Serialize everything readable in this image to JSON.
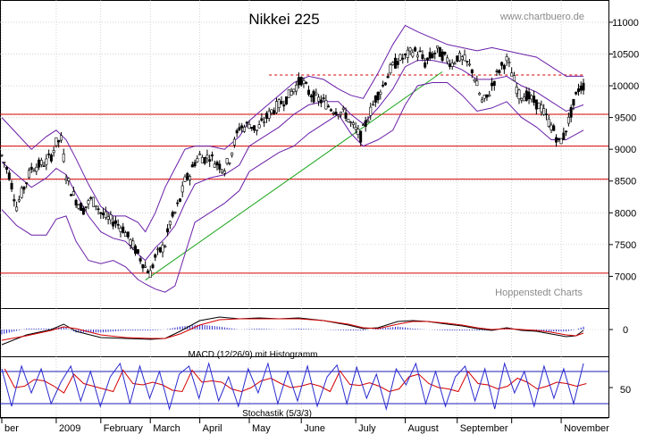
{
  "chart_data": [
    {
      "type": "line",
      "title": "Nikkei 225",
      "watermark_top": "www.chartbuero.de",
      "watermark_bottom": "Hoppenstedt Charts",
      "ylim": [
        6500,
        11350
      ],
      "yticks": [
        7000,
        7500,
        8000,
        8500,
        9000,
        9500,
        10000,
        10500,
        11000
      ],
      "months": [
        "ber",
        "2009",
        "February",
        "March",
        "April",
        "May",
        "June",
        "July",
        "August",
        "September",
        "",
        "November"
      ],
      "x_range": [
        0,
        235
      ],
      "month_starts": [
        0,
        22,
        40,
        60,
        80,
        100,
        121,
        143,
        163,
        184,
        206,
        226
      ],
      "horizontal_lines": [
        7050,
        8530,
        9050,
        9550
      ],
      "dashed_resistance": {
        "value": 10170,
        "from": 108,
        "to": 235
      },
      "trendline": {
        "from": [
          58,
          6940
        ],
        "to": [
          178,
          10220
        ]
      },
      "close": [
        [
          0,
          8900
        ],
        [
          3,
          8600
        ],
        [
          6,
          8100
        ],
        [
          9,
          8400
        ],
        [
          12,
          8700
        ],
        [
          15,
          8750
        ],
        [
          18,
          8800
        ],
        [
          20,
          8900
        ],
        [
          22,
          9100
        ],
        [
          24,
          9150
        ],
        [
          26,
          8600
        ],
        [
          28,
          8350
        ],
        [
          30,
          8200
        ],
        [
          33,
          8050
        ],
        [
          36,
          8200
        ],
        [
          38,
          8150
        ],
        [
          40,
          8000
        ],
        [
          43,
          7900
        ],
        [
          46,
          7850
        ],
        [
          49,
          7750
        ],
        [
          52,
          7550
        ],
        [
          55,
          7350
        ],
        [
          58,
          7150
        ],
        [
          60,
          7050
        ],
        [
          62,
          7300
        ],
        [
          64,
          7400
        ],
        [
          66,
          7500
        ],
        [
          68,
          7850
        ],
        [
          70,
          8000
        ],
        [
          72,
          8200
        ],
        [
          74,
          8500
        ],
        [
          76,
          8600
        ],
        [
          78,
          8800
        ],
        [
          80,
          8900
        ],
        [
          82,
          8850
        ],
        [
          84,
          8900
        ],
        [
          86,
          8800
        ],
        [
          88,
          8750
        ],
        [
          90,
          8700
        ],
        [
          92,
          8850
        ],
        [
          94,
          9100
        ],
        [
          96,
          9350
        ],
        [
          98,
          9350
        ],
        [
          100,
          9400
        ],
        [
          103,
          9300
        ],
        [
          106,
          9450
        ],
        [
          109,
          9600
        ],
        [
          112,
          9700
        ],
        [
          115,
          9800
        ],
        [
          118,
          9950
        ],
        [
          121,
          10100
        ],
        [
          124,
          9900
        ],
        [
          127,
          9800
        ],
        [
          130,
          9750
        ],
        [
          133,
          9650
        ],
        [
          136,
          9600
        ],
        [
          139,
          9550
        ],
        [
          141,
          9400
        ],
        [
          143,
          9300
        ],
        [
          145,
          9200
        ],
        [
          147,
          9400
        ],
        [
          149,
          9600
        ],
        [
          151,
          9800
        ],
        [
          154,
          10000
        ],
        [
          157,
          10250
        ],
        [
          160,
          10400
        ],
        [
          163,
          10450
        ],
        [
          166,
          10550
        ],
        [
          169,
          10500
        ],
        [
          171,
          10350
        ],
        [
          173,
          10450
        ],
        [
          176,
          10550
        ],
        [
          179,
          10450
        ],
        [
          182,
          10350
        ],
        [
          184,
          10450
        ],
        [
          187,
          10400
        ],
        [
          190,
          10250
        ],
        [
          192,
          10000
        ],
        [
          194,
          9750
        ],
        [
          196,
          9800
        ],
        [
          198,
          10000
        ],
        [
          201,
          10250
        ],
        [
          204,
          10400
        ],
        [
          206,
          10200
        ],
        [
          209,
          9850
        ],
        [
          212,
          9850
        ],
        [
          215,
          9750
        ],
        [
          218,
          9650
        ],
        [
          220,
          9500
        ],
        [
          223,
          9300
        ],
        [
          225,
          9100
        ],
        [
          227,
          9200
        ],
        [
          229,
          9450
        ],
        [
          231,
          9700
        ],
        [
          233,
          9950
        ],
        [
          235,
          10000
        ]
      ],
      "bollinger_upper": [
        [
          0,
          9500
        ],
        [
          6,
          9250
        ],
        [
          12,
          9000
        ],
        [
          18,
          9200
        ],
        [
          22,
          9300
        ],
        [
          26,
          9150
        ],
        [
          30,
          8850
        ],
        [
          35,
          8450
        ],
        [
          40,
          8100
        ],
        [
          45,
          7950
        ],
        [
          50,
          7950
        ],
        [
          55,
          7850
        ],
        [
          58,
          7700
        ],
        [
          62,
          8000
        ],
        [
          66,
          8400
        ],
        [
          70,
          8700
        ],
        [
          74,
          9000
        ],
        [
          78,
          9050
        ],
        [
          84,
          9050
        ],
        [
          90,
          9000
        ],
        [
          96,
          9200
        ],
        [
          100,
          9450
        ],
        [
          106,
          9650
        ],
        [
          112,
          9850
        ],
        [
          118,
          10050
        ],
        [
          124,
          10150
        ],
        [
          130,
          10100
        ],
        [
          136,
          9950
        ],
        [
          141,
          9850
        ],
        [
          146,
          9800
        ],
        [
          152,
          10200
        ],
        [
          158,
          10650
        ],
        [
          163,
          10950
        ],
        [
          168,
          10850
        ],
        [
          174,
          10750
        ],
        [
          180,
          10650
        ],
        [
          186,
          10600
        ],
        [
          192,
          10550
        ],
        [
          198,
          10600
        ],
        [
          204,
          10550
        ],
        [
          210,
          10500
        ],
        [
          216,
          10450
        ],
        [
          222,
          10300
        ],
        [
          228,
          10150
        ],
        [
          235,
          10150
        ]
      ],
      "bollinger_lower": [
        [
          0,
          8050
        ],
        [
          6,
          7800
        ],
        [
          12,
          7650
        ],
        [
          18,
          7650
        ],
        [
          22,
          7900
        ],
        [
          26,
          7950
        ],
        [
          30,
          7550
        ],
        [
          35,
          7250
        ],
        [
          40,
          7200
        ],
        [
          45,
          7250
        ],
        [
          50,
          7150
        ],
        [
          55,
          6950
        ],
        [
          58,
          6880
        ],
        [
          62,
          6800
        ],
        [
          66,
          6750
        ],
        [
          70,
          6850
        ],
        [
          74,
          7350
        ],
        [
          78,
          7850
        ],
        [
          84,
          8000
        ],
        [
          90,
          8150
        ],
        [
          96,
          8350
        ],
        [
          100,
          8650
        ],
        [
          106,
          8800
        ],
        [
          112,
          8950
        ],
        [
          118,
          9050
        ],
        [
          124,
          9250
        ],
        [
          130,
          9400
        ],
        [
          136,
          9550
        ],
        [
          141,
          9250
        ],
        [
          146,
          9050
        ],
        [
          152,
          9150
        ],
        [
          158,
          9300
        ],
        [
          163,
          9700
        ],
        [
          168,
          10000
        ],
        [
          174,
          10050
        ],
        [
          180,
          10050
        ],
        [
          186,
          9850
        ],
        [
          192,
          9600
        ],
        [
          198,
          9650
        ],
        [
          204,
          9750
        ],
        [
          210,
          9500
        ],
        [
          216,
          9350
        ],
        [
          222,
          9150
        ],
        [
          228,
          9150
        ],
        [
          235,
          9300
        ]
      ],
      "bollinger_mid": [
        [
          0,
          8800
        ],
        [
          6,
          8600
        ],
        [
          12,
          8400
        ],
        [
          18,
          8550
        ],
        [
          22,
          8700
        ],
        [
          26,
          8600
        ],
        [
          30,
          8300
        ],
        [
          35,
          7950
        ],
        [
          40,
          7700
        ],
        [
          45,
          7600
        ],
        [
          50,
          7550
        ],
        [
          55,
          7350
        ],
        [
          58,
          7250
        ],
        [
          62,
          7450
        ],
        [
          66,
          7600
        ],
        [
          70,
          7800
        ],
        [
          74,
          8150
        ],
        [
          78,
          8450
        ],
        [
          84,
          8550
        ],
        [
          90,
          8600
        ],
        [
          96,
          8750
        ],
        [
          100,
          9050
        ],
        [
          106,
          9200
        ],
        [
          112,
          9350
        ],
        [
          118,
          9550
        ],
        [
          124,
          9700
        ],
        [
          130,
          9750
        ],
        [
          136,
          9750
        ],
        [
          141,
          9550
        ],
        [
          146,
          9400
        ],
        [
          152,
          9650
        ],
        [
          158,
          9950
        ],
        [
          163,
          10300
        ],
        [
          168,
          10400
        ],
        [
          174,
          10400
        ],
        [
          180,
          10350
        ],
        [
          186,
          10250
        ],
        [
          192,
          10100
        ],
        [
          198,
          10100
        ],
        [
          204,
          10150
        ],
        [
          210,
          10000
        ],
        [
          216,
          9900
        ],
        [
          222,
          9750
        ],
        [
          228,
          9600
        ],
        [
          235,
          9700
        ]
      ]
    },
    {
      "type": "line",
      "label": "MACD (12/26/9) mit Histogramm",
      "ytick": "0",
      "ylim": [
        -1,
        1
      ],
      "macd": [
        [
          0,
          -0.85
        ],
        [
          10,
          -0.3
        ],
        [
          20,
          0.0
        ],
        [
          25,
          0.3
        ],
        [
          30,
          -0.1
        ],
        [
          40,
          -0.45
        ],
        [
          50,
          -0.5
        ],
        [
          60,
          -0.55
        ],
        [
          66,
          -0.5
        ],
        [
          72,
          -0.1
        ],
        [
          80,
          0.5
        ],
        [
          88,
          0.7
        ],
        [
          96,
          0.6
        ],
        [
          104,
          0.65
        ],
        [
          112,
          0.6
        ],
        [
          120,
          0.65
        ],
        [
          130,
          0.5
        ],
        [
          140,
          0.25
        ],
        [
          146,
          0.05
        ],
        [
          152,
          0.1
        ],
        [
          160,
          0.45
        ],
        [
          166,
          0.5
        ],
        [
          172,
          0.45
        ],
        [
          180,
          0.3
        ],
        [
          186,
          0.2
        ],
        [
          192,
          0.05
        ],
        [
          198,
          -0.05
        ],
        [
          204,
          0.1
        ],
        [
          210,
          -0.05
        ],
        [
          216,
          -0.1
        ],
        [
          222,
          -0.25
        ],
        [
          228,
          -0.4
        ],
        [
          232,
          -0.35
        ],
        [
          235,
          -0.05
        ]
      ],
      "signal": [
        [
          0,
          -0.6
        ],
        [
          10,
          -0.35
        ],
        [
          20,
          -0.05
        ],
        [
          25,
          0.15
        ],
        [
          30,
          0.05
        ],
        [
          40,
          -0.3
        ],
        [
          50,
          -0.45
        ],
        [
          60,
          -0.5
        ],
        [
          66,
          -0.5
        ],
        [
          72,
          -0.25
        ],
        [
          80,
          0.25
        ],
        [
          88,
          0.55
        ],
        [
          96,
          0.6
        ],
        [
          104,
          0.6
        ],
        [
          112,
          0.6
        ],
        [
          120,
          0.6
        ],
        [
          130,
          0.5
        ],
        [
          140,
          0.3
        ],
        [
          146,
          0.1
        ],
        [
          152,
          0.05
        ],
        [
          160,
          0.3
        ],
        [
          166,
          0.45
        ],
        [
          172,
          0.45
        ],
        [
          180,
          0.35
        ],
        [
          186,
          0.25
        ],
        [
          192,
          0.1
        ],
        [
          198,
          0.0
        ],
        [
          204,
          0.05
        ],
        [
          210,
          0.0
        ],
        [
          216,
          -0.05
        ],
        [
          222,
          -0.15
        ],
        [
          228,
          -0.3
        ],
        [
          232,
          -0.35
        ],
        [
          235,
          -0.2
        ]
      ]
    },
    {
      "type": "line",
      "label": "Stochastik (5/3/3)",
      "ytick": "50",
      "ylim": [
        0,
        100
      ],
      "bands": [
        20,
        80
      ],
      "k_values": [
        85,
        15,
        90,
        40,
        85,
        20,
        60,
        90,
        25,
        80,
        15,
        70,
        95,
        20,
        90,
        30,
        80,
        10,
        75,
        90,
        30,
        95,
        25,
        70,
        15,
        85,
        40,
        95,
        20,
        80,
        25,
        90,
        15,
        70,
        92,
        20,
        88,
        30,
        75,
        10,
        85,
        55,
        95,
        20,
        80,
        15,
        70,
        90,
        25,
        85,
        10,
        95,
        40,
        80,
        15,
        90,
        30,
        85,
        20,
        95
      ]
    }
  ]
}
